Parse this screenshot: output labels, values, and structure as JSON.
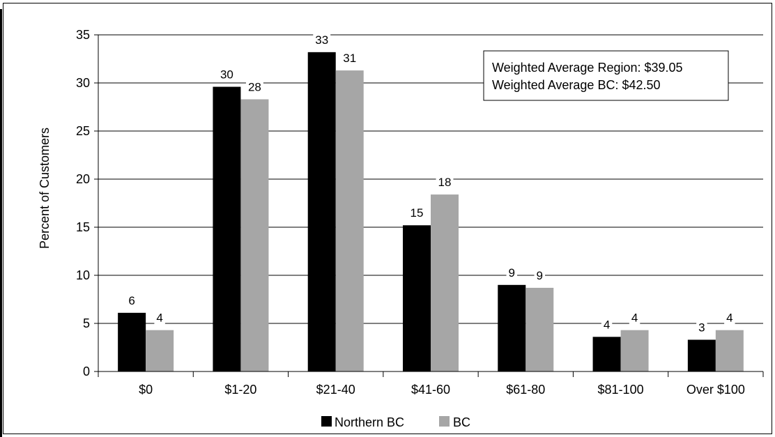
{
  "chart_data": {
    "type": "bar",
    "categories": [
      "$0",
      "$1-20",
      "$21-40",
      "$41-60",
      "$61-80",
      "$81-100",
      "Over $100"
    ],
    "series": [
      {
        "name": "Northern BC",
        "values": [
          6.1,
          29.6,
          33.2,
          15.2,
          9.0,
          3.6,
          3.3
        ],
        "labels": [
          "6",
          "30",
          "33",
          "15",
          "9",
          "4",
          "3"
        ],
        "color": "#000000"
      },
      {
        "name": "BC",
        "values": [
          4.3,
          28.3,
          31.3,
          18.4,
          8.7,
          4.3,
          4.3
        ],
        "labels": [
          "4",
          "28",
          "31",
          "18",
          "9",
          "4",
          "4"
        ],
        "color": "#a6a6a6"
      }
    ],
    "ylabel": "Percent of Customers",
    "xlabel": "",
    "ylim": [
      0,
      35
    ],
    "yticks": [
      0,
      5,
      10,
      15,
      20,
      25,
      30,
      35
    ],
    "grid": true,
    "legend_position": "bottom",
    "annotation": [
      "Weighted Average Region: $39.05",
      "Weighted Average BC: $42.50"
    ]
  }
}
